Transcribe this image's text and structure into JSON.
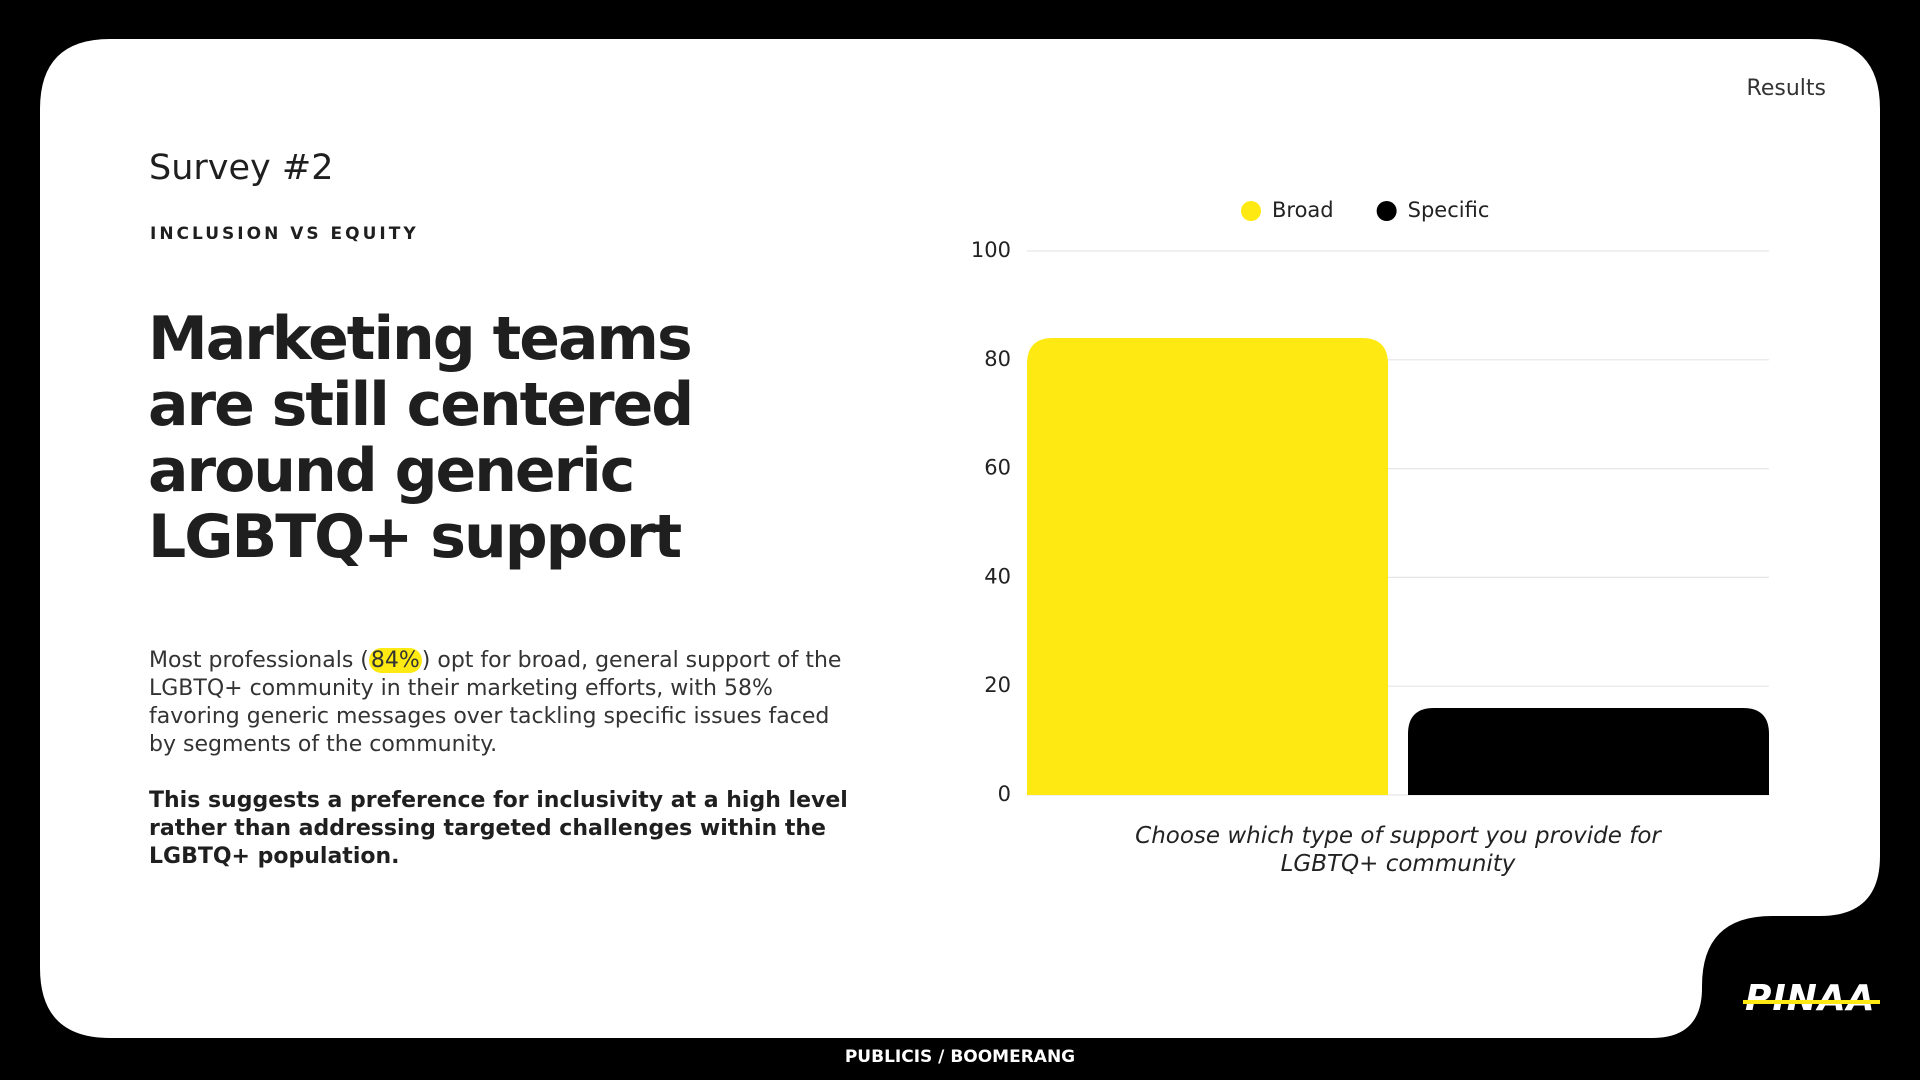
{
  "header": {
    "label": "Results",
    "kicker": "Survey #2",
    "section": "INCLUSION VS EQUITY"
  },
  "headline": [
    "Marketing teams",
    "are still centered",
    "around generic",
    "LGBTQ+ support"
  ],
  "body": {
    "before": "Most professionals (",
    "highlight": "84%",
    "after": ") opt for broad, general support of the LGBTQ+ community in their marketing efforts, with 58% favoring generic messages over tackling specific issues faced by segments of the community."
  },
  "conclusion": "This suggests a preference for inclusivity at a high level rather than addressing targeted challenges within the LGBTQ+ population.",
  "footer": "PUBLICIS / BOOMERANG",
  "logo": "PINAA",
  "chart_data": {
    "type": "bar",
    "xlabel": "Choose which type of support you provide for LGBTQ+ community",
    "categories": [
      null
    ],
    "series": [
      {
        "name": "Broad",
        "color": "#ffe912",
        "values": [
          84
        ]
      },
      {
        "name": "Specific",
        "color": "#000000",
        "values": [
          16
        ]
      }
    ],
    "ylim": [
      0,
      100
    ],
    "yticks": [
      0,
      20,
      40,
      60,
      80,
      100
    ],
    "grid": true,
    "legend": "top"
  }
}
